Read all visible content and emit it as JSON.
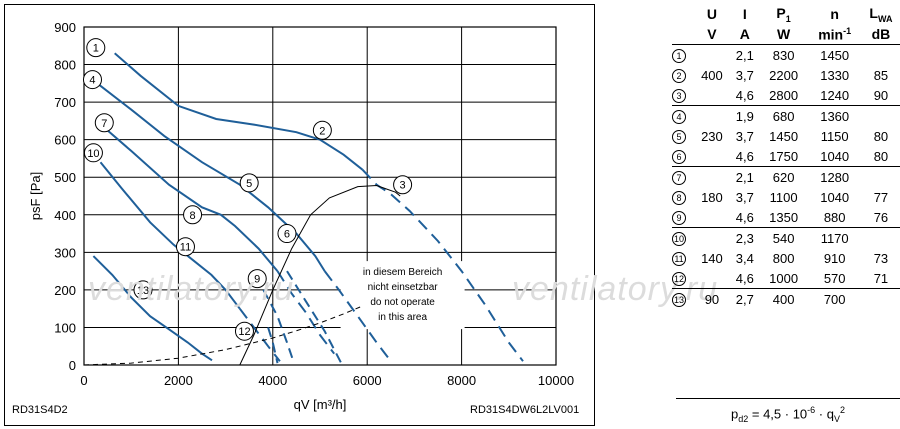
{
  "chart_data": {
    "type": "line",
    "xlabel": "qV [m³/h]",
    "ylabel": "psF [Pa]",
    "xlim": [
      0,
      10000
    ],
    "ylim": [
      0,
      900
    ],
    "xticks": [
      0,
      2000,
      4000,
      6000,
      8000,
      10000
    ],
    "yticks": [
      0,
      100,
      200,
      300,
      400,
      500,
      600,
      700,
      800,
      900
    ],
    "grid": true,
    "annotation": [
      "in diesem Bereich",
      "nicht einsetzbar",
      "do not operate",
      "in this area"
    ],
    "series": [
      {
        "name": "1",
        "style": "solid",
        "points": [
          [
            650,
            830
          ],
          [
            1200,
            770
          ],
          [
            2000,
            690
          ],
          [
            2800,
            655
          ],
          [
            3600,
            640
          ],
          [
            4500,
            620
          ],
          [
            5000,
            600
          ],
          [
            5500,
            560
          ],
          [
            5900,
            520
          ],
          [
            6200,
            480
          ],
          [
            6500,
            455
          ],
          [
            6900,
            410
          ],
          [
            7500,
            330
          ],
          [
            8000,
            250
          ],
          [
            8500,
            160
          ],
          [
            9000,
            60
          ],
          [
            9300,
            10
          ]
        ]
      },
      {
        "name": "2",
        "style": "solid",
        "points": [
          [
            280,
            750
          ],
          [
            1000,
            680
          ],
          [
            1700,
            610
          ],
          [
            2500,
            540
          ],
          [
            3300,
            480
          ],
          [
            3900,
            420
          ],
          [
            4500,
            350
          ],
          [
            4900,
            290
          ],
          [
            5100,
            250
          ],
          [
            5400,
            200
          ],
          [
            5800,
            130
          ],
          [
            6200,
            60
          ],
          [
            6500,
            10
          ]
        ]
      },
      {
        "name": "3",
        "style": "solid",
        "points": [
          [
            450,
            630
          ],
          [
            1000,
            570
          ],
          [
            1800,
            480
          ],
          [
            2500,
            420
          ],
          [
            2900,
            400
          ],
          [
            3200,
            370
          ],
          [
            3700,
            310
          ],
          [
            4100,
            250
          ],
          [
            4400,
            190
          ],
          [
            4700,
            140
          ],
          [
            5000,
            80
          ],
          [
            5300,
            30
          ]
        ]
      },
      {
        "name": "4",
        "style": "solid",
        "points": [
          [
            350,
            540
          ],
          [
            800,
            470
          ],
          [
            1400,
            380
          ],
          [
            1900,
            320
          ],
          [
            2300,
            280
          ],
          [
            2700,
            240
          ],
          [
            3000,
            200
          ],
          [
            3300,
            150
          ],
          [
            3600,
            100
          ],
          [
            3900,
            50
          ],
          [
            4150,
            10
          ]
        ]
      },
      {
        "name": "5",
        "style": "solid",
        "points": [
          [
            200,
            290
          ],
          [
            600,
            240
          ],
          [
            1000,
            180
          ],
          [
            1400,
            130
          ],
          [
            1800,
            95
          ],
          [
            2200,
            60
          ],
          [
            2500,
            30
          ],
          [
            2800,
            5
          ]
        ]
      },
      {
        "name": "limit-parabola",
        "style": "dashed",
        "points": [
          [
            0,
            0
          ],
          [
            1000,
            5
          ],
          [
            2000,
            18
          ],
          [
            3000,
            41
          ],
          [
            4000,
            72
          ],
          [
            4500,
            91
          ],
          [
            5000,
            112
          ],
          [
            5500,
            136
          ],
          [
            5900,
            157
          ]
        ]
      },
      {
        "name": "system-curve",
        "style": "solid",
        "points": [
          [
            3300,
            0
          ],
          [
            3600,
            80
          ],
          [
            4000,
            200
          ],
          [
            4400,
            310
          ],
          [
            4800,
            400
          ],
          [
            5200,
            445
          ],
          [
            5800,
            475
          ],
          [
            6200,
            478
          ],
          [
            6600,
            460
          ],
          [
            6700,
            450
          ]
        ]
      }
    ]
  },
  "curve_labels": [
    {
      "num": "1",
      "x": 250,
      "y": 845
    },
    {
      "num": "2",
      "x": 5050,
      "y": 625
    },
    {
      "num": "3",
      "x": 6750,
      "y": 480
    },
    {
      "num": "4",
      "x": 180,
      "y": 760
    },
    {
      "num": "5",
      "x": 3500,
      "y": 485
    },
    {
      "num": "6",
      "x": 4300,
      "y": 350
    },
    {
      "num": "7",
      "x": 430,
      "y": 645
    },
    {
      "num": "8",
      "x": 2300,
      "y": 400
    },
    {
      "num": "9",
      "x": 3670,
      "y": 230
    },
    {
      "num": "10",
      "x": 200,
      "y": 565
    },
    {
      "num": "11",
      "x": 2150,
      "y": 315
    },
    {
      "num": "12",
      "x": 3400,
      "y": 90
    },
    {
      "num": "13",
      "x": 1250,
      "y": 200
    }
  ],
  "codes": {
    "left": "RD31S4D2",
    "right": "RD31S4DW6L2LV001"
  },
  "watermark": "ventilatory.ru",
  "table": {
    "headers": [
      "U",
      "I",
      "P1",
      "n",
      "LWA"
    ],
    "units": [
      "V",
      "A",
      "W",
      "min-1",
      "dB"
    ],
    "rows": [
      {
        "num": "1",
        "U": "",
        "I": "2,1",
        "P": "830",
        "n": "1450",
        "L": ""
      },
      {
        "num": "2",
        "U": "400",
        "I": "3,7",
        "P": "2200",
        "n": "1330",
        "L": "85"
      },
      {
        "num": "3",
        "U": "",
        "I": "4,6",
        "P": "2800",
        "n": "1240",
        "L": "90"
      },
      {
        "num": "4",
        "U": "",
        "I": "1,9",
        "P": "680",
        "n": "1360",
        "L": ""
      },
      {
        "num": "5",
        "U": "230",
        "I": "3,7",
        "P": "1450",
        "n": "1150",
        "L": "80"
      },
      {
        "num": "6",
        "U": "",
        "I": "4,6",
        "P": "1750",
        "n": "1040",
        "L": "80"
      },
      {
        "num": "7",
        "U": "",
        "I": "2,1",
        "P": "620",
        "n": "1280",
        "L": ""
      },
      {
        "num": "8",
        "U": "180",
        "I": "3,7",
        "P": "1100",
        "n": "1040",
        "L": "77"
      },
      {
        "num": "9",
        "U": "",
        "I": "4,6",
        "P": "1350",
        "n": "880",
        "L": "76"
      },
      {
        "num": "10",
        "U": "",
        "I": "2,3",
        "P": "540",
        "n": "1170",
        "L": ""
      },
      {
        "num": "11",
        "U": "140",
        "I": "3,4",
        "P": "800",
        "n": "910",
        "L": "73"
      },
      {
        "num": "12",
        "U": "",
        "I": "4,6",
        "P": "1000",
        "n": "570",
        "L": "71"
      },
      {
        "num": "13",
        "U": "90",
        "I": "2,7",
        "P": "400",
        "n": "700",
        "L": ""
      }
    ]
  },
  "formula": "pd2 = 4,5 · 10-6 · qV2",
  "colors": {
    "curve": "#1f5f99",
    "grid": "#000000"
  }
}
